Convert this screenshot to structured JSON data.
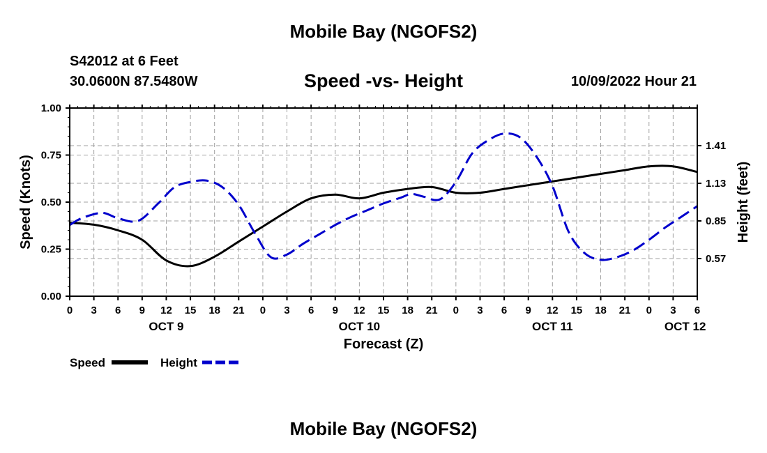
{
  "header": {
    "title": "Mobile Bay (NGOFS2)",
    "station": "S42012 at 6 Feet",
    "coords": "30.0600N  87.5480W",
    "chart_title": "Speed -vs- Height",
    "datetime": "10/09/2022 Hour 21"
  },
  "footer": {
    "title": "Mobile Bay (NGOFS2)"
  },
  "legend": {
    "speed_label": "Speed",
    "height_label": "Height"
  },
  "colors": {
    "speed": "#000000",
    "height": "#0000cc",
    "grid": "#a0a0a0"
  },
  "chart_data": {
    "type": "line",
    "title": "Speed -vs- Height",
    "xlabel": "Forecast (Z)",
    "ylabel": "Speed (Knots)",
    "y2label": "Height (feet)",
    "xlim": [
      0,
      78
    ],
    "ylim": [
      0,
      1
    ],
    "y2lim": [
      0.29,
      1.69
    ],
    "x_tick_hours": [
      0,
      3,
      6,
      9,
      12,
      15,
      18,
      21,
      24,
      27,
      30,
      33,
      36,
      39,
      42,
      45,
      48,
      51,
      54,
      57,
      60,
      63,
      66,
      69,
      72,
      75,
      78
    ],
    "x_tick_labels": [
      "0",
      "3",
      "6",
      "9",
      "12",
      "15",
      "18",
      "21",
      "0",
      "3",
      "6",
      "9",
      "12",
      "15",
      "18",
      "21",
      "0",
      "3",
      "6",
      "9",
      "12",
      "15",
      "18",
      "21",
      "0",
      "3",
      "6"
    ],
    "day_labels": [
      {
        "hour": 12,
        "label": "OCT 9"
      },
      {
        "hour": 36,
        "label": "OCT 10"
      },
      {
        "hour": 60,
        "label": "OCT 11"
      },
      {
        "hour": 76.5,
        "label": "OCT 12"
      }
    ],
    "y_ticks": [
      0,
      0.25,
      0.5,
      0.75,
      1.0
    ],
    "y_tick_labels": [
      "0.00",
      "0.25",
      "0.50",
      "0.75",
      "1.00"
    ],
    "y2_ticks": [
      0.57,
      0.85,
      1.13,
      1.41
    ],
    "y2_tick_labels": [
      "0.57",
      "0.85",
      "1.13",
      "1.41"
    ],
    "series": [
      {
        "name": "Speed",
        "axis": "left",
        "style": "solid",
        "x": [
          0,
          3,
          6,
          9,
          12,
          15,
          18,
          21,
          24,
          27,
          30,
          33,
          36,
          39,
          42,
          45,
          48,
          51,
          54,
          57,
          60,
          63,
          66,
          69,
          72,
          75,
          78
        ],
        "values": [
          0.39,
          0.38,
          0.35,
          0.3,
          0.19,
          0.16,
          0.21,
          0.29,
          0.37,
          0.45,
          0.52,
          0.54,
          0.52,
          0.55,
          0.57,
          0.58,
          0.55,
          0.55,
          0.57,
          0.59,
          0.61,
          0.63,
          0.65,
          0.67,
          0.69,
          0.69,
          0.66
        ]
      },
      {
        "name": "Height",
        "axis": "right",
        "style": "dashed",
        "x": [
          0,
          1.5,
          4,
          6,
          8.5,
          11,
          13,
          15,
          17,
          19,
          21,
          23,
          25,
          27,
          29,
          31,
          33,
          35,
          37,
          39,
          41,
          42.5,
          44,
          46,
          48,
          50,
          52,
          54,
          56,
          58,
          60,
          62,
          64,
          66,
          68,
          70,
          72,
          74,
          76,
          78
        ],
        "values": [
          0.82,
          0.87,
          0.91,
          0.87,
          0.85,
          0.98,
          1.1,
          1.14,
          1.15,
          1.1,
          0.97,
          0.76,
          0.58,
          0.6,
          0.68,
          0.75,
          0.82,
          0.88,
          0.93,
          0.98,
          1.02,
          1.05,
          1.03,
          1.01,
          1.14,
          1.35,
          1.45,
          1.5,
          1.47,
          1.33,
          1.11,
          0.77,
          0.61,
          0.56,
          0.58,
          0.63,
          0.71,
          0.8,
          0.88,
          0.96
        ]
      }
    ]
  }
}
